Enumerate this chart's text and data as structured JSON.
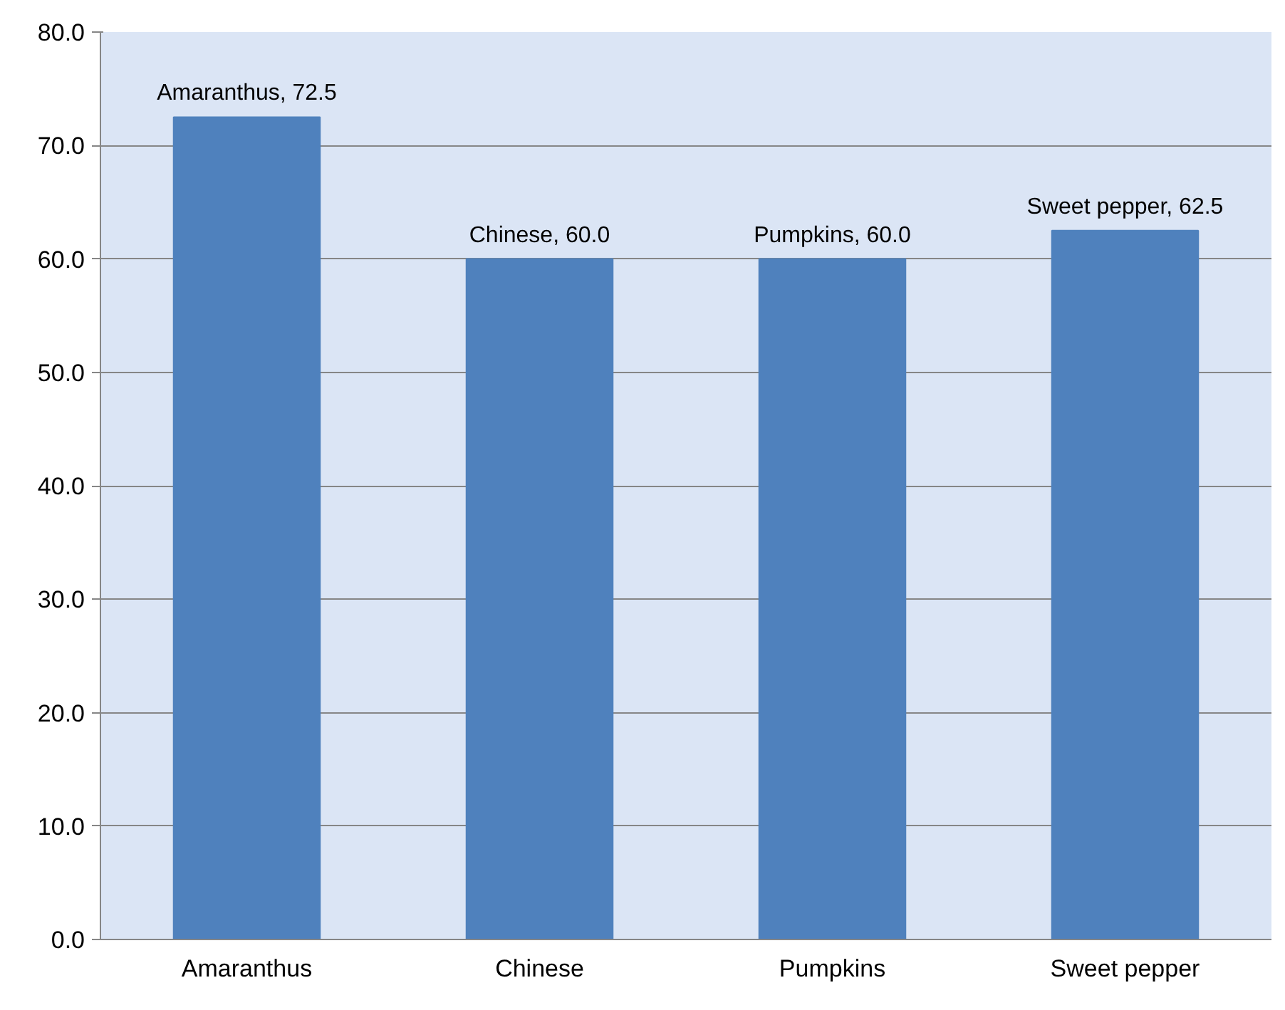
{
  "chart_data": {
    "type": "bar",
    "categories": [
      "Amaranthus",
      "Chinese",
      "Pumpkins",
      "Sweet pepper"
    ],
    "values": [
      72.5,
      60.0,
      60.0,
      62.5
    ],
    "color": "#4f81bd",
    "value_labels": [
      "Amaranthus, 72.5",
      "Chinese, 60.0",
      "Pumpkins, 60.0",
      "Sweet pepper, 62.5"
    ],
    "ylim": [
      0,
      80
    ],
    "yticks": [
      {
        "value": 0,
        "label": "0.0"
      },
      {
        "value": 10,
        "label": "10.0"
      },
      {
        "value": 20,
        "label": "20.0"
      },
      {
        "value": 30,
        "label": "30.0"
      },
      {
        "value": 40,
        "label": "40.0"
      },
      {
        "value": 50,
        "label": "50.0"
      },
      {
        "value": 60,
        "label": "60.0"
      },
      {
        "value": 70,
        "label": "70.0"
      },
      {
        "value": 80,
        "label": "80.0"
      }
    ],
    "grid": "y"
  }
}
